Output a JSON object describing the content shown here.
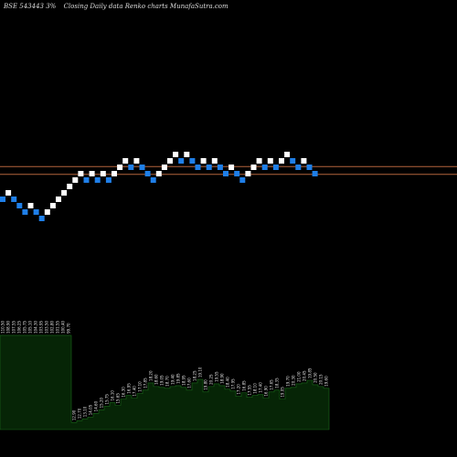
{
  "header": {
    "symbol": "BSE 543443 3%",
    "description": "Closing Daily data  Renko  charts MunafaSutra.com"
  },
  "colors": {
    "background": "#000000",
    "up_brick": "#ffffff",
    "down_brick": "#1f7fe8",
    "reference_line": "#b4643c",
    "volume_fill": "#062506",
    "volume_edge": "#1a6b1a",
    "label_text": "#e6e6e6"
  },
  "chart_data": {
    "type": "renko",
    "brick_size_pct": 3,
    "bricks": [
      {
        "level": 0,
        "dir": "down"
      },
      {
        "level": 1,
        "dir": "up"
      },
      {
        "level": 0,
        "dir": "down"
      },
      {
        "level": -1,
        "dir": "down"
      },
      {
        "level": -2,
        "dir": "down"
      },
      {
        "level": -1,
        "dir": "up"
      },
      {
        "level": -2,
        "dir": "down"
      },
      {
        "level": -3,
        "dir": "down"
      },
      {
        "level": -2,
        "dir": "up"
      },
      {
        "level": -1,
        "dir": "up"
      },
      {
        "level": 0,
        "dir": "up"
      },
      {
        "level": 1,
        "dir": "up"
      },
      {
        "level": 2,
        "dir": "up"
      },
      {
        "level": 3,
        "dir": "up"
      },
      {
        "level": 4,
        "dir": "up"
      },
      {
        "level": 3,
        "dir": "down"
      },
      {
        "level": 4,
        "dir": "up"
      },
      {
        "level": 3,
        "dir": "down"
      },
      {
        "level": 4,
        "dir": "up"
      },
      {
        "level": 3,
        "dir": "down"
      },
      {
        "level": 4,
        "dir": "up"
      },
      {
        "level": 5,
        "dir": "up"
      },
      {
        "level": 6,
        "dir": "up"
      },
      {
        "level": 5,
        "dir": "down"
      },
      {
        "level": 6,
        "dir": "up"
      },
      {
        "level": 5,
        "dir": "down"
      },
      {
        "level": 4,
        "dir": "down"
      },
      {
        "level": 3,
        "dir": "down"
      },
      {
        "level": 4,
        "dir": "up"
      },
      {
        "level": 5,
        "dir": "up"
      },
      {
        "level": 6,
        "dir": "up"
      },
      {
        "level": 7,
        "dir": "up"
      },
      {
        "level": 6,
        "dir": "down"
      },
      {
        "level": 7,
        "dir": "up"
      },
      {
        "level": 6,
        "dir": "down"
      },
      {
        "level": 5,
        "dir": "down"
      },
      {
        "level": 6,
        "dir": "up"
      },
      {
        "level": 5,
        "dir": "down"
      },
      {
        "level": 6,
        "dir": "up"
      },
      {
        "level": 5,
        "dir": "down"
      },
      {
        "level": 4,
        "dir": "down"
      },
      {
        "level": 5,
        "dir": "up"
      },
      {
        "level": 4,
        "dir": "down"
      },
      {
        "level": 3,
        "dir": "down"
      },
      {
        "level": 4,
        "dir": "up"
      },
      {
        "level": 5,
        "dir": "up"
      },
      {
        "level": 6,
        "dir": "up"
      },
      {
        "level": 5,
        "dir": "down"
      },
      {
        "level": 6,
        "dir": "up"
      },
      {
        "level": 5,
        "dir": "down"
      },
      {
        "level": 6,
        "dir": "up"
      },
      {
        "level": 7,
        "dir": "up"
      },
      {
        "level": 6,
        "dir": "down"
      },
      {
        "level": 5,
        "dir": "down"
      },
      {
        "level": 6,
        "dir": "up"
      },
      {
        "level": 5,
        "dir": "down"
      },
      {
        "level": 4,
        "dir": "down"
      }
    ],
    "reference_levels": [
      5.1,
      3.9
    ],
    "volume": [
      105,
      105,
      105,
      105,
      105,
      105,
      105,
      105,
      105,
      105,
      105,
      105,
      105,
      8,
      10,
      12,
      14,
      18,
      22,
      26,
      30,
      27,
      34,
      38,
      35,
      40,
      44,
      52,
      48,
      47,
      46,
      48,
      49,
      47,
      44,
      52,
      56,
      42,
      48,
      51,
      49,
      45,
      43,
      37,
      41,
      36,
      38,
      39,
      35,
      42,
      44,
      34,
      46,
      47,
      51,
      52,
      55,
      50,
      48,
      46
    ],
    "volume_max": 110,
    "price_labels": [
      "110.50",
      "108.90",
      "107.55",
      "106.25",
      "105.75",
      "105.10",
      "104.30",
      "103.95",
      "103.50",
      "102.80",
      "101.55",
      "100.40",
      "99.70",
      "12.90",
      "12.70",
      "13.10",
      "14.05",
      "14.60",
      "15.20",
      "15.75",
      "16.10",
      "15.65",
      "16.30",
      "16.95",
      "17.40",
      "17.10",
      "17.85",
      "18.20",
      "18.60",
      "19.05",
      "18.70",
      "19.40",
      "19.85",
      "18.95",
      "17.60",
      "18.25",
      "19.10",
      "19.80",
      "20.25",
      "19.55",
      "18.90",
      "18.40",
      "17.95",
      "17.20",
      "16.85",
      "17.55",
      "18.10",
      "17.40",
      "16.90",
      "17.65",
      "18.35",
      "19.05",
      "19.70",
      "20.30",
      "21.00",
      "20.45",
      "19.85",
      "20.50",
      "20.15",
      "19.60"
    ]
  }
}
